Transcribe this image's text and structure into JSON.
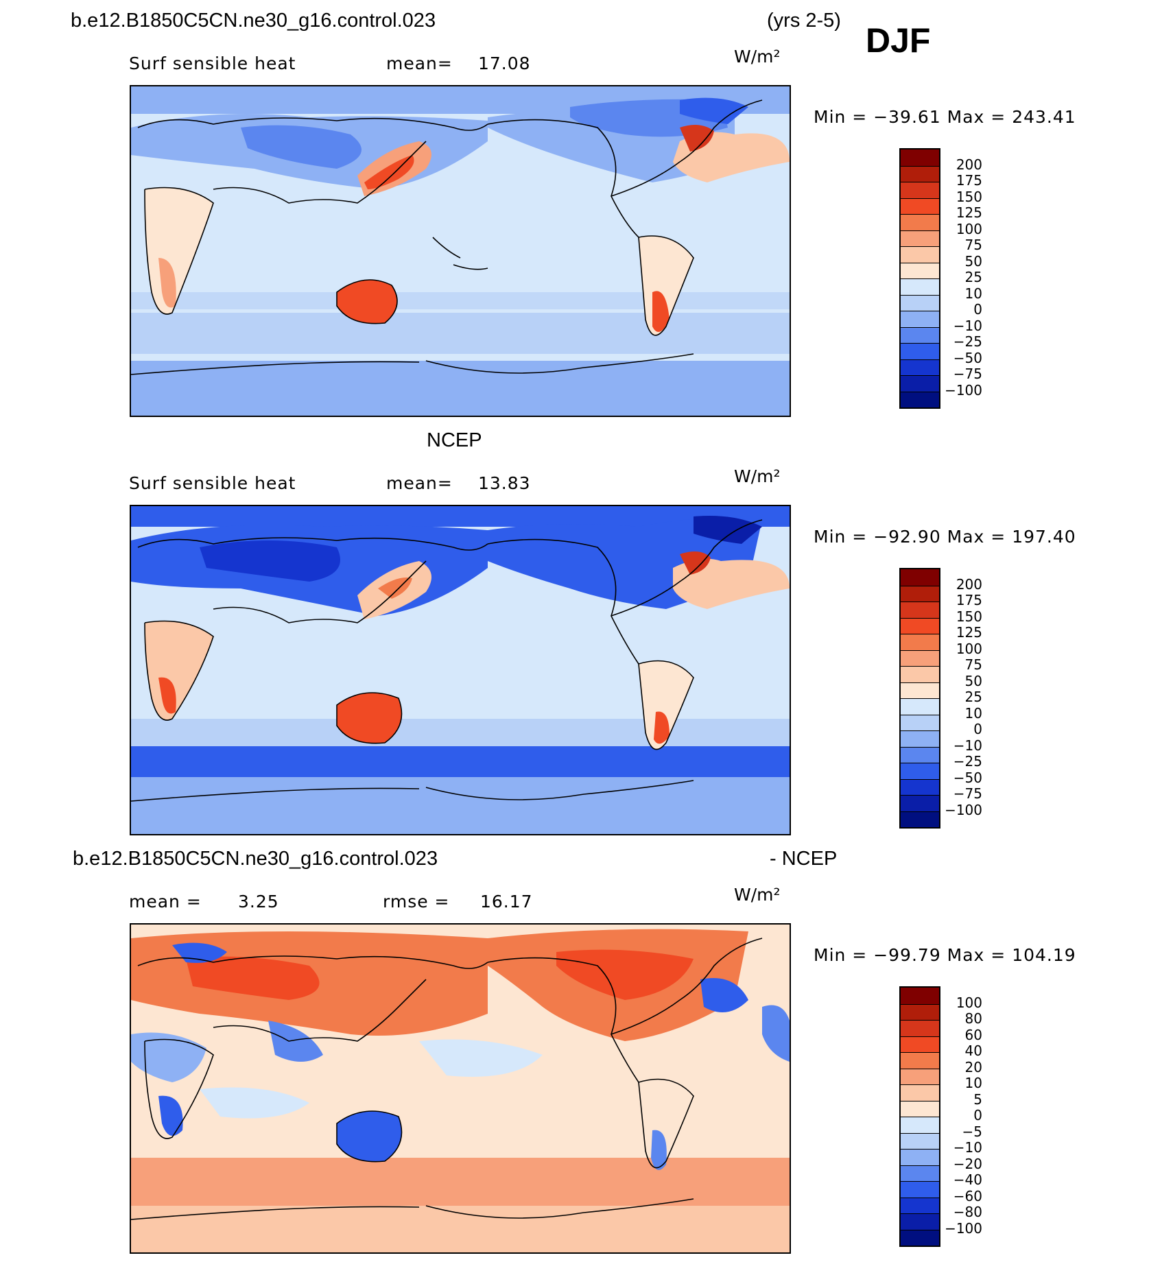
{
  "header": {
    "case_name": "b.e12.B1850C5CN.ne30_g16.control.023",
    "years": "(yrs 2-5)",
    "season": "DJF"
  },
  "panels": [
    {
      "id": "model",
      "title": "",
      "variable": "Surf sensible heat",
      "stat_label": "mean=",
      "stat_value": "17.08",
      "stat2_label": "",
      "stat2_value": "",
      "units": "W/m²",
      "minmax": "Min = −39.61  Max = 243.41",
      "colorbar": {
        "levels": [
          "200",
          "175",
          "150",
          "125",
          "100",
          "75",
          "50",
          "25",
          "10",
          "0",
          "−10",
          "−25",
          "−50",
          "−75",
          "−100"
        ],
        "colors": [
          "#7f0000",
          "#b01e0a",
          "#d6361b",
          "#f04a24",
          "#f27b4b",
          "#f7a07a",
          "#fbc8a8",
          "#fde6d2",
          "#d6e8fb",
          "#b8d1f7",
          "#8eb1f4",
          "#5b86ef",
          "#2f5deb",
          "#1535cf",
          "#0a1ea8",
          "#000f80"
        ]
      }
    },
    {
      "id": "obs",
      "title": "NCEP",
      "variable": "Surf sensible heat",
      "stat_label": "mean=",
      "stat_value": "13.83",
      "stat2_label": "",
      "stat2_value": "",
      "units": "W/m²",
      "minmax": "Min = −92.90  Max = 197.40",
      "colorbar": {
        "levels": [
          "200",
          "175",
          "150",
          "125",
          "100",
          "75",
          "50",
          "25",
          "10",
          "0",
          "−10",
          "−25",
          "−50",
          "−75",
          "−100"
        ],
        "colors": [
          "#7f0000",
          "#b01e0a",
          "#d6361b",
          "#f04a24",
          "#f27b4b",
          "#f7a07a",
          "#fbc8a8",
          "#fde6d2",
          "#d6e8fb",
          "#b8d1f7",
          "#8eb1f4",
          "#5b86ef",
          "#2f5deb",
          "#1535cf",
          "#0a1ea8",
          "#000f80"
        ]
      }
    },
    {
      "id": "diff",
      "title_left": "b.e12.B1850C5CN.ne30_g16.control.023",
      "title_right": "- NCEP",
      "variable": "",
      "stat_label": "mean =",
      "stat_value": "3.25",
      "stat2_label": "rmse =",
      "stat2_value": "16.17",
      "units": "W/m²",
      "minmax": "Min = −99.79  Max = 104.19",
      "colorbar": {
        "levels": [
          "100",
          "80",
          "60",
          "40",
          "20",
          "10",
          "5",
          "0",
          "−5",
          "−10",
          "−20",
          "−40",
          "−60",
          "−80",
          "−100"
        ],
        "colors": [
          "#7f0000",
          "#b01e0a",
          "#d6361b",
          "#f04a24",
          "#f27b4b",
          "#f7a07a",
          "#fbc8a8",
          "#fde6d2",
          "#d6e8fb",
          "#b8d1f7",
          "#8eb1f4",
          "#5b86ef",
          "#2f5deb",
          "#1535cf",
          "#0a1ea8",
          "#000f80"
        ]
      }
    }
  ]
}
